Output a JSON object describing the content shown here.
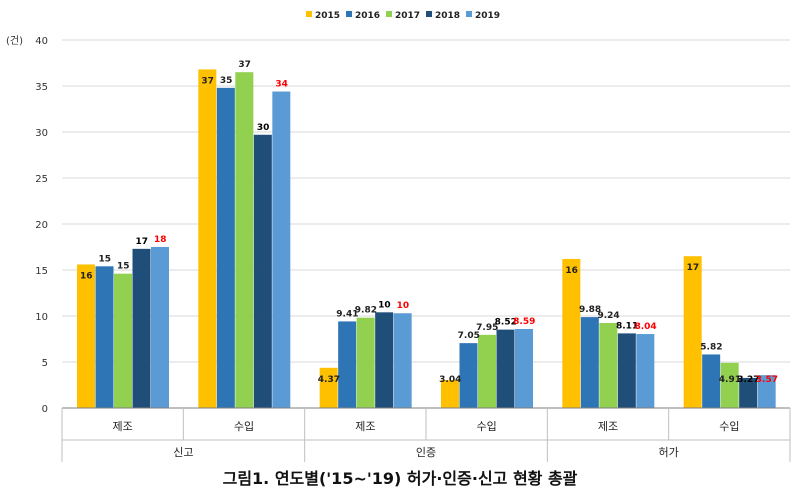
{
  "chart_data": {
    "type": "bar",
    "title": "그림1. 연도별('15~'19) 허가·인증·신고 현황 총괄",
    "ylabel": "(건)",
    "ylim": [
      0,
      40
    ],
    "yticks": [
      0,
      5,
      10,
      15,
      20,
      25,
      30,
      35,
      40
    ],
    "grid": true,
    "legend_position": "top",
    "groups": [
      {
        "label": "신고",
        "categories": [
          "제조",
          "수입"
        ]
      },
      {
        "label": "인증",
        "categories": [
          "제조",
          "수입"
        ]
      },
      {
        "label": "허가",
        "categories": [
          "제조",
          "수입"
        ]
      }
    ],
    "series": [
      {
        "name": "2015",
        "color": "#FFC000",
        "values": [
          15.6,
          36.8,
          4.37,
          3.04,
          16.2,
          16.5
        ],
        "labels": [
          "16",
          "37",
          "4.37",
          "3.04",
          "16",
          "17"
        ],
        "label_color": "#222222"
      },
      {
        "name": "2016",
        "color": "#2E75B6",
        "values": [
          15.4,
          34.8,
          9.41,
          7.05,
          9.88,
          5.82
        ],
        "labels": [
          "15",
          "35",
          "9.41",
          "7.05",
          "9.88",
          "5.82"
        ],
        "label_color": "#222222"
      },
      {
        "name": "2017",
        "color": "#92D050",
        "values": [
          14.6,
          36.5,
          9.82,
          7.95,
          9.24,
          4.91
        ],
        "labels": [
          "15",
          "37",
          "9.82",
          "7.95",
          "9.24",
          "4.91"
        ],
        "label_color": "#222222"
      },
      {
        "name": "2018",
        "color": "#1F4E79",
        "values": [
          17.3,
          29.7,
          10.4,
          8.52,
          8.11,
          3.27
        ],
        "labels": [
          "17",
          "30",
          "10",
          "8.52",
          "8.11",
          "3.27"
        ],
        "label_color": "#000000"
      },
      {
        "name": "2019",
        "color": "#5B9BD5",
        "values": [
          17.5,
          34.4,
          10.3,
          8.59,
          8.04,
          3.57
        ],
        "labels": [
          "18",
          "34",
          "10",
          "8.59",
          "8.04",
          "3.57"
        ],
        "label_color": "#FF0000"
      }
    ]
  }
}
